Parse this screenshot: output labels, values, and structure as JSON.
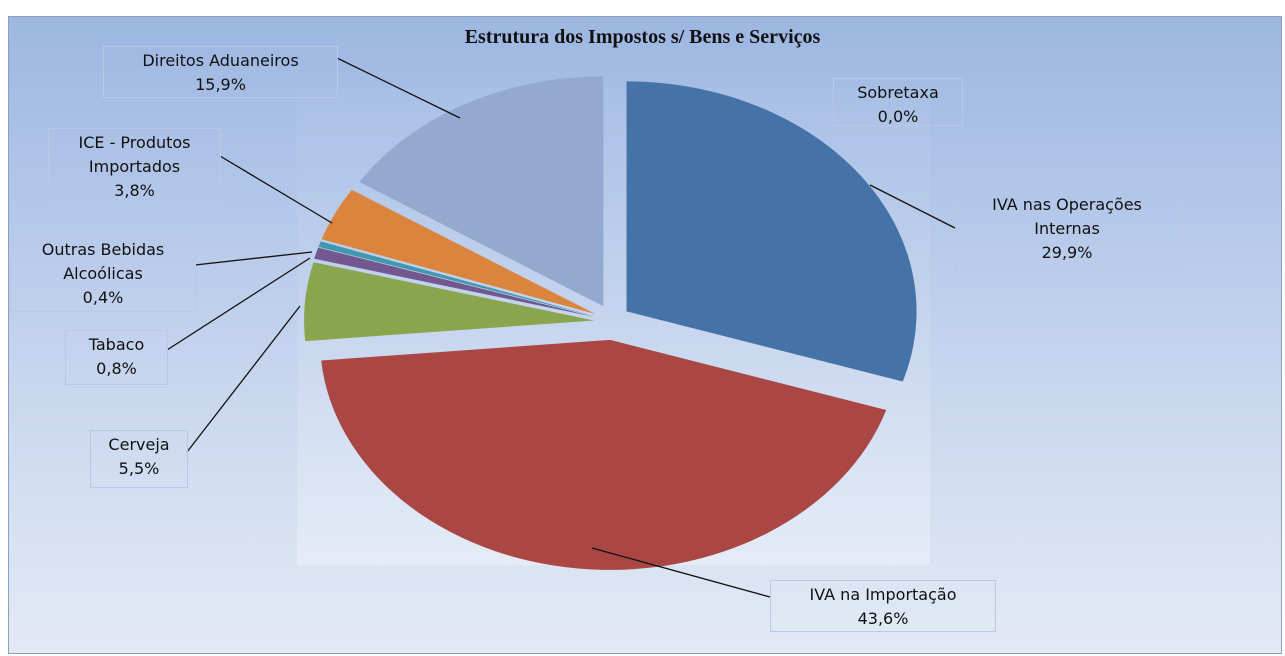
{
  "chart_data": {
    "type": "pie",
    "title": "Estrutura dos Impostos s/ Bens e Serviços",
    "categories": [
      "Sobretaxa",
      "IVA nas Operações Internas",
      "IVA na Importação",
      "Cerveja",
      "Tabaco",
      "Outras Bebidas Alcoólicas",
      "ICE - Produtos Importados",
      "Direitos Aduaneiros"
    ],
    "values": [
      0.0,
      29.9,
      43.6,
      5.5,
      0.8,
      0.4,
      3.8,
      15.9
    ],
    "value_labels": [
      "0,0%",
      "29,9%",
      "43,6%",
      "5,5%",
      "0,8%",
      "0,4%",
      "3,8%",
      "15,9%"
    ],
    "colors": [
      "#4f81bd",
      "#4572a7",
      "#aa4643",
      "#89a54e",
      "#71588f",
      "#4198af",
      "#db843d",
      "#93a9cf"
    ]
  }
}
